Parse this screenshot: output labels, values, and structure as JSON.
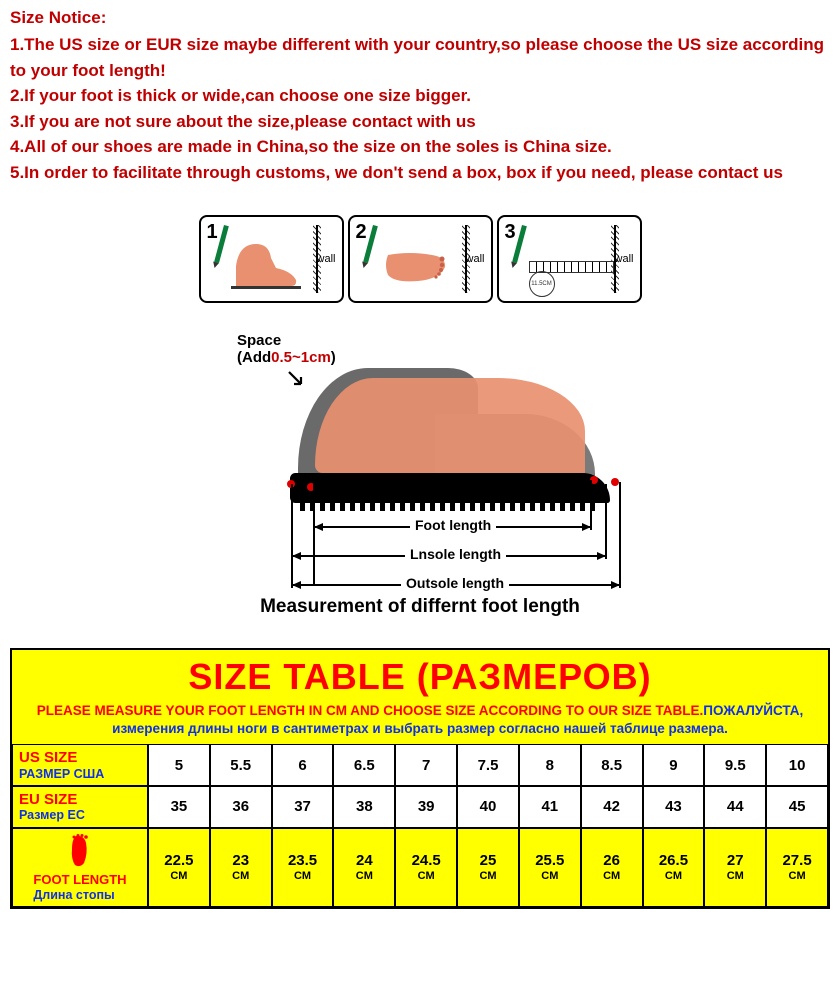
{
  "notice": {
    "header": "Size Notice:",
    "items": [
      "1.The US size or EUR size maybe different with your country,so please choose the US size according to your foot length!",
      "2.If your foot is thick or wide,can choose one size bigger.",
      "3.If you are not sure about the size,please contact with us",
      "4.All of our shoes are made in China,so the size on the soles is China size.",
      "5.In order to facilitate through customs, we don't send a box, box if you need, please contact us"
    ],
    "text_color": "#c00000"
  },
  "diagram": {
    "steps": [
      {
        "num": "1",
        "wall": "wall"
      },
      {
        "num": "2",
        "wall": "wall"
      },
      {
        "num": "3",
        "wall": "wall",
        "circle_text": "11.5CM"
      }
    ],
    "space_label_1": "Space",
    "space_label_2": "(Add",
    "space_value": "0.5~1cm",
    "space_label_3": ")",
    "dims": {
      "foot": "Foot length",
      "insole": "Lnsole length",
      "outsole": "Outsole length"
    },
    "caption": "Measurement of differnt foot length",
    "accent_red": "#c00000",
    "foot_color": "#e89070",
    "shoe_upper": "#6a6a6a"
  },
  "sizeTable": {
    "title": "SIZE TABLE (РАЗМЕРОВ)",
    "instruction_en": "PLEASE MEASURE YOUR FOOT LENGTH IN CM AND CHOOSE SIZE ACCORDING TO OUR SIZE TABLE.",
    "instruction_ru": "ПОЖАЛУЙСТА, измерения длины ноги в сантиметрах и выбрать размер согласно нашей таблице размера.",
    "colors": {
      "header_bg": "#ffff00",
      "cell_bg": "#ffffff",
      "red": "#ff0000",
      "blue": "#1030e8",
      "border": "#000000"
    },
    "rows": [
      {
        "label_en": "US SIZE",
        "label_ru": "РАЗМЕР США",
        "label_bg": "#ffff00",
        "text_color_en": "#ff0000",
        "text_color_ru": "#1030e8",
        "cells": [
          "5",
          "5.5",
          "6",
          "6.5",
          "7",
          "7.5",
          "8",
          "8.5",
          "9",
          "9.5",
          "10"
        ],
        "cell_bg": "#ffffff"
      },
      {
        "label_en": "EU SIZE",
        "label_ru": "Размер ЕС",
        "label_bg": "#ffff00",
        "text_color_en": "#ff0000",
        "text_color_ru": "#1030e8",
        "cells": [
          "35",
          "36",
          "37",
          "38",
          "39",
          "40",
          "41",
          "42",
          "43",
          "44",
          "45"
        ],
        "cell_bg": "#ffffff"
      },
      {
        "label_en": "FOOT LENGTH",
        "label_ru": "Длина стопы",
        "label_bg": "#ffff00",
        "text_color_en": "#ff0000",
        "text_color_ru": "#1030e8",
        "has_icon": true,
        "cells": [
          "22.5",
          "23",
          "23.5",
          "24",
          "24.5",
          "25",
          "25.5",
          "26",
          "26.5",
          "27",
          "27.5"
        ],
        "unit": "CM",
        "cell_bg": "#ffff00"
      }
    ]
  }
}
